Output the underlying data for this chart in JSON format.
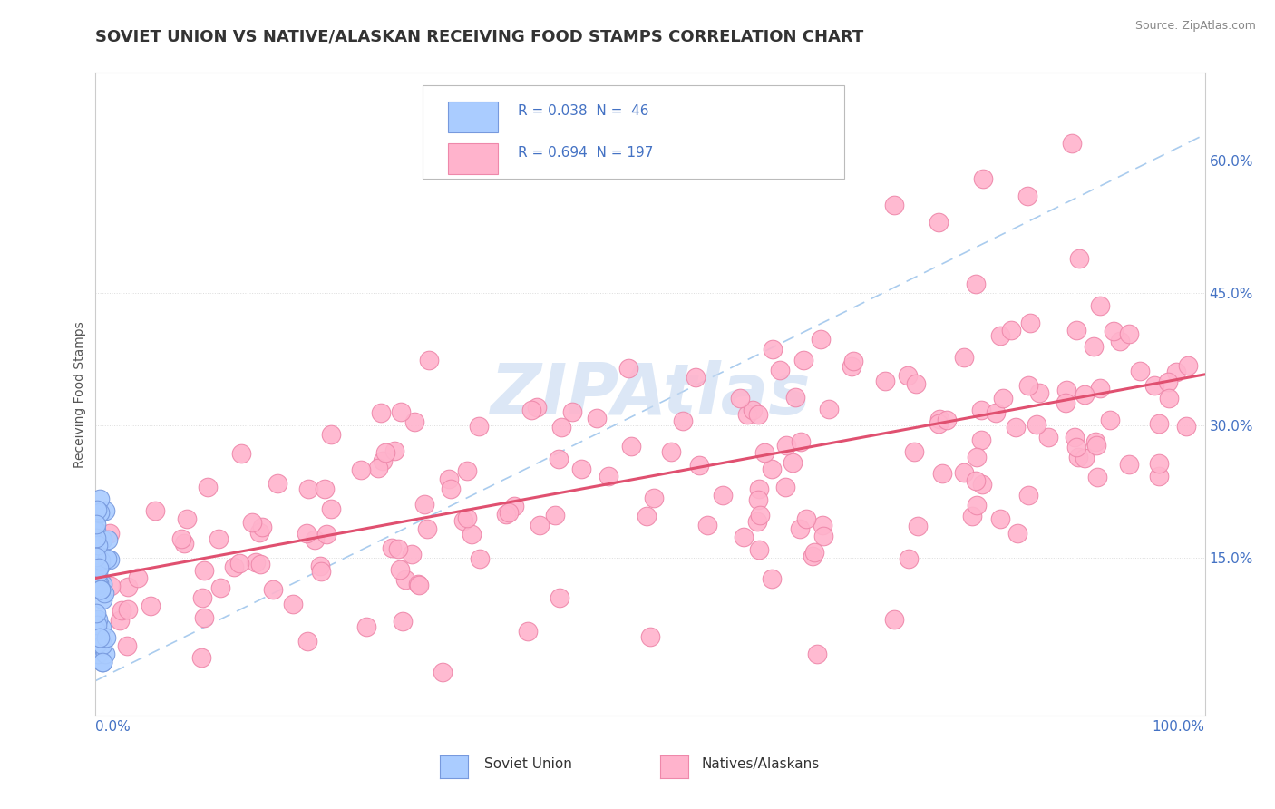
{
  "title": "SOVIET UNION VS NATIVE/ALASKAN RECEIVING FOOD STAMPS CORRELATION CHART",
  "source": "Source: ZipAtlas.com",
  "ylabel": "Receiving Food Stamps",
  "yticks": [
    0.0,
    0.15,
    0.3,
    0.45,
    0.6
  ],
  "ytick_labels": [
    "",
    "15.0%",
    "30.0%",
    "45.0%",
    "60.0%"
  ],
  "xlim": [
    0.0,
    1.0
  ],
  "ylim": [
    -0.03,
    0.7
  ],
  "legend_r1": "R = 0.038",
  "legend_n1": "N =  46",
  "legend_r2": "R = 0.694",
  "legend_n2": "N = 197",
  "color_soviet": "#aaccff",
  "color_soviet_edge": "#7799dd",
  "color_native": "#ffb3cc",
  "color_native_edge": "#ee88aa",
  "color_trend_blue_dash": "#aaccee",
  "color_trend_pink": "#e05070",
  "background_color": "#ffffff",
  "watermark": "ZIPAtlas",
  "watermark_color": "#c5d8f0",
  "title_fontsize": 13,
  "axis_label_color": "#4472c4",
  "grid_color": "#dddddd",
  "soviet_seed": 1234,
  "native_seed": 5678
}
